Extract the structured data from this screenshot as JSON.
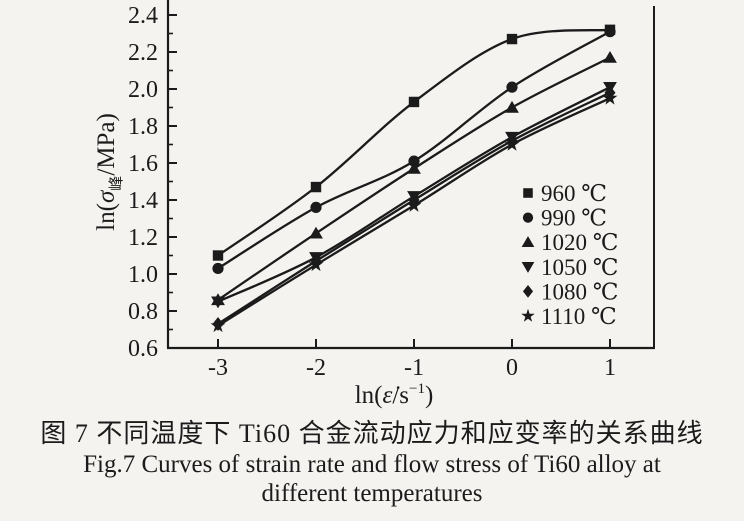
{
  "figure": {
    "caption_cn": "图 7  不同温度下 Ti60 合金流动应力和应变率的关系曲线",
    "caption_en_line1": "Fig.7  Curves of strain rate and flow stress of Ti60 alloy at",
    "caption_en_line2": "different temperatures"
  },
  "chart_data": {
    "type": "line",
    "x": [
      -3,
      -2,
      -1,
      0,
      1
    ],
    "series": [
      {
        "name": "960 ℃",
        "marker": "square",
        "values": [
          1.1,
          1.47,
          1.93,
          2.27,
          2.32
        ]
      },
      {
        "name": "990 ℃",
        "marker": "circle",
        "values": [
          1.03,
          1.36,
          1.61,
          2.01,
          2.31
        ]
      },
      {
        "name": "1020 ℃",
        "marker": "triangle-up",
        "values": [
          0.86,
          1.22,
          1.57,
          1.9,
          2.17
        ]
      },
      {
        "name": "1050 ℃",
        "marker": "triangle-down",
        "values": [
          0.85,
          1.09,
          1.42,
          1.74,
          2.01
        ]
      },
      {
        "name": "1080 ℃",
        "marker": "diamond",
        "values": [
          0.73,
          1.07,
          1.4,
          1.72,
          1.98
        ]
      },
      {
        "name": "1110 ℃",
        "marker": "star",
        "values": [
          0.72,
          1.05,
          1.37,
          1.7,
          1.95
        ]
      }
    ],
    "x_tick_labels": [
      "-3",
      "-2",
      "-1",
      "0",
      "1"
    ],
    "x_tick_values": [
      -3,
      -2,
      -1,
      0,
      1
    ],
    "y_tick_labels": [
      "0.6",
      "0.8",
      "1.0",
      "1.2",
      "1.4",
      "1.6",
      "1.8",
      "2.0",
      "2.2",
      "2.4"
    ],
    "y_tick_values": [
      0.6,
      0.8,
      1.0,
      1.2,
      1.4,
      1.6,
      1.8,
      2.0,
      2.2,
      2.4
    ],
    "y_minor_tick_values": [
      0.7,
      0.9,
      1.1,
      1.3,
      1.5,
      1.7,
      1.9,
      2.1,
      2.3
    ],
    "xlim": [
      -3.51,
      1.46
    ],
    "ylim": [
      0.6,
      2.4
    ],
    "xlabel_parts": {
      "pre": "ln(",
      "sym": "ε̇",
      "mid": "/s",
      "sup": "−1",
      "end": ")"
    },
    "ylabel_parts": {
      "pre": "ln(",
      "sym": "σ",
      "sub": "峰",
      "post": "/MPa)"
    },
    "title": "",
    "grid": false,
    "legend_position": "inside-right",
    "line_color": "#1b1b1b",
    "marker_color": "#1b1b1b",
    "background_color": "#f4f3f0"
  }
}
